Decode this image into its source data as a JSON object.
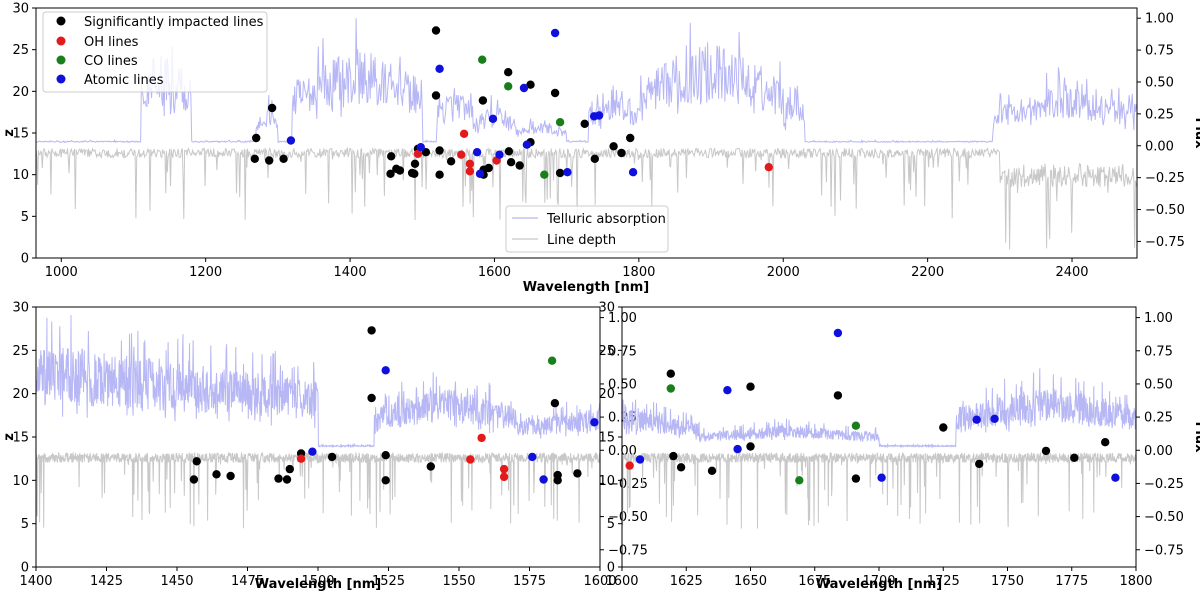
{
  "colors": {
    "significant": "#000000",
    "oh": "#e31a1c",
    "co": "#1a7f1a",
    "atomic": "#1010dd",
    "telluric": "#b7b7f5",
    "line_depth": "#c8c8c8"
  },
  "legend_points": [
    "Significantly impacted lines",
    "OH lines",
    "CO lines",
    "Atomic lines"
  ],
  "legend_lines": [
    "Telluric absorption",
    "Line depth"
  ],
  "chart_data": [
    {
      "type": "scatter",
      "xlabel": "Wavelength [nm]",
      "ylabel": "z",
      "ylabel_right": "Flux",
      "xlim": [
        965,
        2490
      ],
      "ylim": [
        0,
        30
      ],
      "ylim_right": [
        -0.88,
        1.08
      ],
      "xticks": [
        1000,
        1200,
        1400,
        1600,
        1800,
        2000,
        2200,
        2400
      ],
      "yticks": [
        0,
        5,
        10,
        15,
        20,
        25,
        30
      ],
      "yticks_right": [
        -0.75,
        -0.5,
        -0.25,
        0.0,
        0.25,
        0.5,
        0.75,
        1.0
      ],
      "yticks_right_labels": [
        "−0.75",
        "−0.50",
        "−0.25",
        "0.00",
        "0.25",
        "0.50",
        "0.75",
        "1.00"
      ],
      "legend_position": "top-left"
    },
    {
      "type": "scatter",
      "xlabel": "Wavelength [nm]",
      "ylabel": "z",
      "xlim": [
        1400,
        1600
      ],
      "ylim": [
        0,
        30
      ],
      "ylim_right": [
        -0.88,
        1.08
      ],
      "xticks": [
        1400,
        1425,
        1450,
        1475,
        1500,
        1525,
        1550,
        1575,
        1600
      ],
      "yticks": [
        0,
        5,
        10,
        15,
        20,
        25,
        30
      ],
      "yticks_right": [
        -0.75,
        -0.5,
        -0.25,
        0.0,
        0.25,
        0.5,
        0.75,
        1.0
      ],
      "yticks_right_labels": [
        "−0.75",
        "−0.50",
        "−0.25",
        "0.00",
        "0.25",
        "0.50",
        "0.75",
        "1.00"
      ]
    },
    {
      "type": "scatter",
      "xlabel": "Wavelength [nm]",
      "ylabel_right": "Flux",
      "xlim": [
        1600,
        1800
      ],
      "ylim": [
        0,
        30
      ],
      "ylim_right": [
        -0.88,
        1.08
      ],
      "xticks": [
        1600,
        1625,
        1650,
        1675,
        1700,
        1725,
        1750,
        1775,
        1800
      ],
      "yticks": [
        0,
        5,
        10,
        15,
        20,
        25,
        30
      ],
      "yticks_right": [
        -0.75,
        -0.5,
        -0.25,
        0.0,
        0.25,
        0.5,
        0.75,
        1.0
      ],
      "yticks_right_labels": [
        "−0.75",
        "−0.50",
        "−0.25",
        "0.00",
        "0.25",
        "0.50",
        "0.75",
        "1.00"
      ]
    }
  ],
  "series": [
    {
      "key": "significant",
      "points": [
        [
          1268,
          11.9
        ],
        [
          1270,
          14.4
        ],
        [
          1288,
          11.7
        ],
        [
          1292,
          18.0
        ],
        [
          1308,
          11.9
        ],
        [
          1456,
          10.1
        ],
        [
          1457,
          12.2
        ],
        [
          1464,
          10.7
        ],
        [
          1469,
          10.5
        ],
        [
          1486,
          10.2
        ],
        [
          1489,
          10.1
        ],
        [
          1490,
          11.3
        ],
        [
          1494,
          13.1
        ],
        [
          1505,
          12.7
        ],
        [
          1519,
          27.3
        ],
        [
          1519,
          19.5
        ],
        [
          1524,
          12.9
        ],
        [
          1524,
          10.0
        ],
        [
          1540,
          11.6
        ],
        [
          1584,
          18.9
        ],
        [
          1585,
          10.0
        ],
        [
          1585,
          10.6
        ],
        [
          1592,
          10.8
        ],
        [
          1619,
          22.3
        ],
        [
          1620,
          12.8
        ],
        [
          1623,
          11.5
        ],
        [
          1635,
          11.1
        ],
        [
          1650,
          20.8
        ],
        [
          1650,
          13.9
        ],
        [
          1684,
          19.8
        ],
        [
          1691,
          10.2
        ],
        [
          1725,
          16.1
        ],
        [
          1739,
          11.9
        ],
        [
          1765,
          13.4
        ],
        [
          1776,
          12.6
        ],
        [
          1788,
          14.4
        ]
      ]
    },
    {
      "key": "oh",
      "points": [
        [
          1494,
          12.5
        ],
        [
          1554,
          12.4
        ],
        [
          1558,
          14.9
        ],
        [
          1566,
          11.3
        ],
        [
          1566,
          10.4
        ],
        [
          1603,
          11.7
        ],
        [
          1980,
          10.9
        ]
      ]
    },
    {
      "key": "co",
      "points": [
        [
          1583,
          23.8
        ],
        [
          1619,
          20.6
        ],
        [
          1669,
          10.0
        ],
        [
          1691,
          16.3
        ]
      ]
    },
    {
      "key": "atomic",
      "points": [
        [
          1318,
          14.1
        ],
        [
          1498,
          13.3
        ],
        [
          1524,
          22.7
        ],
        [
          1576,
          12.7
        ],
        [
          1580,
          10.1
        ],
        [
          1598,
          16.7
        ],
        [
          1607,
          12.4
        ],
        [
          1641,
          20.4
        ],
        [
          1645,
          13.6
        ],
        [
          1684,
          27.0
        ],
        [
          1701,
          10.3
        ],
        [
          1738,
          17.0
        ],
        [
          1745,
          17.1
        ],
        [
          1792,
          10.3
        ]
      ]
    }
  ]
}
